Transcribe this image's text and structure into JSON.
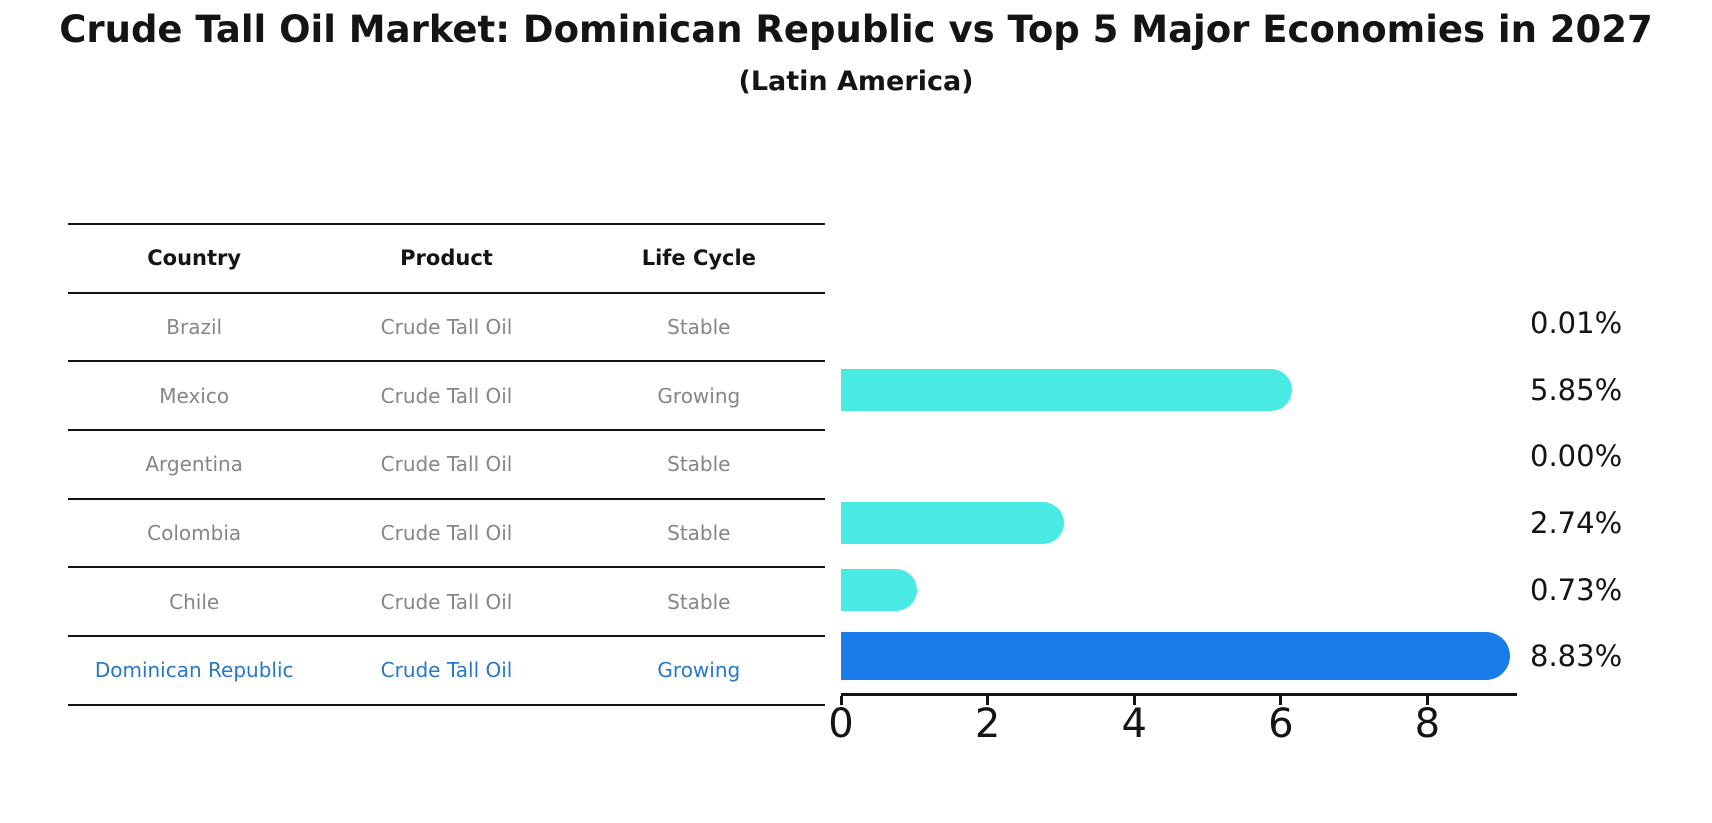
{
  "header": {
    "title": "Crude Tall Oil Market: Dominican Republic vs Top 5 Major Economies in 2027",
    "subtitle": "(Latin America)"
  },
  "table": {
    "columns": [
      "Country",
      "Product",
      "Life Cycle"
    ],
    "rows": [
      {
        "country": "Brazil",
        "product": "Crude Tall Oil",
        "life_cycle": "Stable",
        "value": 0.01,
        "value_label": "0.01%",
        "highlight": false
      },
      {
        "country": "Mexico",
        "product": "Crude Tall Oil",
        "life_cycle": "Growing",
        "value": 5.85,
        "value_label": "5.85%",
        "highlight": false
      },
      {
        "country": "Argentina",
        "product": "Crude Tall Oil",
        "life_cycle": "Stable",
        "value": 0.0,
        "value_label": "0.00%",
        "highlight": false
      },
      {
        "country": "Colombia",
        "product": "Crude Tall Oil",
        "life_cycle": "Stable",
        "value": 2.74,
        "value_label": "2.74%",
        "highlight": false
      },
      {
        "country": "Chile",
        "product": "Crude Tall Oil",
        "life_cycle": "Stable",
        "value": 0.73,
        "value_label": "0.73%",
        "highlight": false
      },
      {
        "country": "Dominican Republic",
        "product": "Crude Tall Oil",
        "life_cycle": "Growing",
        "value": 8.83,
        "value_label": "8.83%",
        "highlight": true
      }
    ]
  },
  "chart_data": {
    "type": "bar",
    "orientation": "horizontal",
    "title": "Crude Tall Oil Market: Dominican Republic vs Top 5 Major Economies in 2027",
    "subtitle": "(Latin America)",
    "categories": [
      "Brazil",
      "Mexico",
      "Argentina",
      "Colombia",
      "Chile",
      "Dominican Republic"
    ],
    "values": [
      0.01,
      5.85,
      0.0,
      2.74,
      0.73,
      8.83
    ],
    "value_labels": [
      "0.01%",
      "5.85%",
      "0.00%",
      "2.74%",
      "0.73%",
      "8.83%"
    ],
    "xlabel": "",
    "ylabel": "",
    "xlim": [
      0,
      9.2
    ],
    "xticks": [
      0,
      2,
      4,
      6,
      8
    ],
    "grid": false,
    "legend": false,
    "bar_color": "#4AEAE4",
    "highlight_color": "#1A7CE8",
    "highlight_category": "Dominican Republic"
  },
  "colors": {
    "accent_blue": "#1A7CE8",
    "bar_cyan": "#4AEAE4",
    "highlight_text": "#2878C8",
    "muted_text": "#868686",
    "text": "#141414",
    "background": "#FFFFFF"
  }
}
